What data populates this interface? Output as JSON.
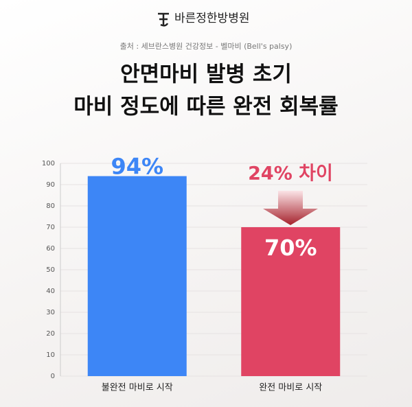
{
  "brand": "바른정한방병원",
  "source": "출처 : 세브란스병원 건강정보 - 벨마비 (Bell's palsy)",
  "chart_data": {
    "type": "bar",
    "title": [
      "안면마비 발병 초기",
      "마비 정도에 따른 완전 회복률"
    ],
    "categories": [
      "불완전 마비로 시작",
      "완전 마비로 시작"
    ],
    "values": [
      94,
      70
    ],
    "value_labels": [
      "94%",
      "70%"
    ],
    "colors": [
      "#3d86f6",
      "#e04463"
    ],
    "annotation": "24% 차이",
    "ylim": [
      0,
      100
    ],
    "yticks": [
      0,
      10,
      20,
      30,
      40,
      50,
      60,
      70,
      80,
      90,
      100
    ],
    "grid": true
  }
}
